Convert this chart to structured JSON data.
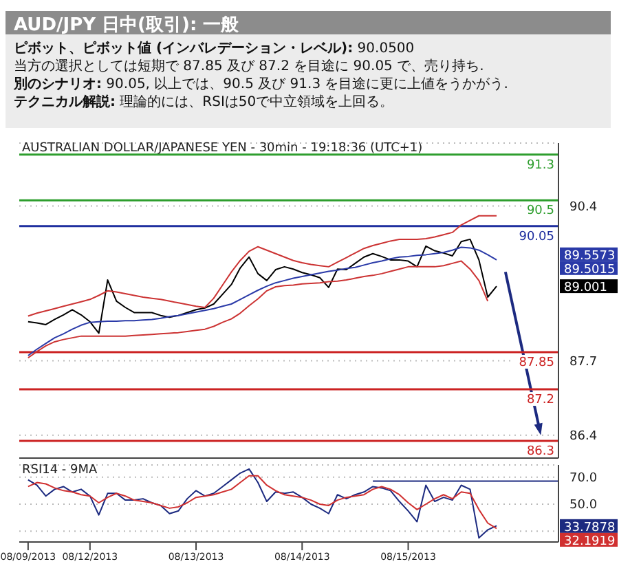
{
  "chart_data": [
    {
      "type": "other",
      "title": "AUD/JPY 日中(取引): 一般",
      "annotations": [
        "ピボット、ピボット値 (インバレデーション・レベル): 90.0500",
        "当方の選択としては短期で 87.85 及び 87.2 を目途に 90.05 で、売り持ち.",
        "別のシナリオ: 90.05, 以上では、90.5 及び 91.3 を目途に更に上値をうかがう.",
        "テクニカル解説: 理論的には、RSIは50で中立領域を上回る。"
      ]
    },
    {
      "type": "line",
      "title": "AUSTRALIAN DOLLAR/JAPANESE YEN - 30min - 19:18:36 (UTC+1)",
      "annotations": [
        "89.5573",
        "89.5015",
        "89.001"
      ],
      "categories": [
        null,
        null,
        null,
        null,
        null,
        null,
        null,
        null,
        null,
        null,
        null,
        null,
        null,
        null,
        null,
        null,
        null,
        null,
        null,
        null,
        null,
        null,
        null,
        null,
        null,
        null,
        null,
        null,
        null,
        null,
        null,
        null,
        null,
        null,
        null,
        null,
        null,
        null,
        null,
        null,
        null,
        null,
        null,
        null,
        null,
        null,
        null,
        null,
        null,
        null,
        null,
        null,
        null,
        null,
        null,
        null,
        null,
        null,
        null,
        null,
        null,
        null
      ],
      "series": [
        {
          "color": "#000000",
          "values": [
            null,
            88.38,
            88.36,
            88.33,
            88.42,
            88.5,
            88.59,
            88.5,
            88.38,
            88.18,
            89.11,
            88.74,
            88.63,
            88.54,
            88.54,
            88.54,
            88.49,
            88.46,
            88.49,
            88.54,
            88.59,
            88.62,
            88.69,
            88.86,
            89.03,
            89.32,
            89.51,
            89.22,
            89.1,
            89.29,
            89.34,
            89.3,
            89.24,
            89.2,
            89.15,
            88.98,
            89.3,
            89.29,
            89.4,
            89.51,
            89.57,
            89.52,
            89.46,
            89.46,
            89.44,
            89.34,
            89.7,
            89.62,
            89.58,
            89.53,
            89.78,
            89.82,
            89.46,
            88.81,
            89.0,
            null,
            null,
            null,
            null,
            null,
            null,
            null
          ]
        },
        {
          "color": "#cc3333",
          "values": [
            null,
            88.48,
            88.53,
            88.57,
            88.61,
            88.65,
            88.69,
            88.73,
            88.77,
            88.84,
            88.92,
            88.9,
            88.87,
            88.84,
            88.81,
            88.79,
            88.77,
            88.74,
            88.71,
            88.68,
            88.65,
            88.63,
            88.79,
            89.02,
            89.25,
            89.45,
            89.61,
            89.69,
            89.63,
            89.57,
            89.51,
            89.45,
            89.41,
            89.38,
            89.36,
            89.34,
            89.42,
            89.5,
            89.58,
            89.66,
            89.71,
            89.75,
            89.79,
            89.82,
            89.82,
            89.82,
            89.83,
            89.86,
            89.9,
            89.94,
            90.07,
            90.15,
            90.23,
            90.23,
            90.23,
            null,
            null,
            null,
            null,
            null,
            null,
            null
          ]
        },
        {
          "color": "#cc3333",
          "values": [
            null,
            87.75,
            87.86,
            87.96,
            88.03,
            88.07,
            88.1,
            88.13,
            88.13,
            88.13,
            88.13,
            88.13,
            88.13,
            88.14,
            88.15,
            88.16,
            88.17,
            88.18,
            88.19,
            88.21,
            88.23,
            88.25,
            88.3,
            88.37,
            88.43,
            88.53,
            88.66,
            88.78,
            88.92,
            88.99,
            89.01,
            89.02,
            89.04,
            89.05,
            89.06,
            89.08,
            89.09,
            89.11,
            89.14,
            89.17,
            89.19,
            89.22,
            89.26,
            89.3,
            89.34,
            89.34,
            89.34,
            89.34,
            89.36,
            89.4,
            89.44,
            89.3,
            89.1,
            88.74,
            null,
            null,
            null,
            null,
            null,
            null,
            null,
            null
          ]
        },
        {
          "color": "#2a3aa8",
          "values": [
            null,
            87.79,
            87.9,
            88.0,
            88.1,
            88.17,
            88.25,
            88.32,
            88.37,
            88.38,
            88.39,
            88.39,
            88.4,
            88.4,
            88.41,
            88.42,
            88.44,
            88.47,
            88.49,
            88.52,
            88.55,
            88.58,
            88.61,
            88.65,
            88.69,
            88.77,
            88.85,
            88.93,
            89.0,
            89.06,
            89.1,
            89.14,
            89.17,
            89.2,
            89.23,
            89.26,
            89.28,
            89.31,
            89.33,
            89.37,
            89.41,
            89.44,
            89.48,
            89.51,
            89.52,
            89.54,
            89.55,
            89.57,
            89.59,
            89.63,
            89.68,
            89.67,
            89.63,
            89.55,
            89.46,
            null,
            null,
            null,
            null,
            null,
            null,
            null
          ]
        }
      ],
      "ref_lines": [
        {
          "axis": "y",
          "value": 91.3,
          "label": "91.3",
          "color": "#2e9e2e"
        },
        {
          "axis": "y",
          "value": 90.5,
          "label": "90.5",
          "color": "#2e9e2e"
        },
        {
          "axis": "y",
          "value": 90.05,
          "label": "90.05",
          "color": "#1f2f9f"
        },
        {
          "axis": "y",
          "value": 87.85,
          "label": "87.85",
          "color": "#cc2222"
        },
        {
          "axis": "y",
          "value": 87.2,
          "label": "87.2",
          "color": "#cc2222"
        },
        {
          "axis": "y",
          "value": 86.3,
          "label": "86.3",
          "color": "#cc2222"
        }
      ],
      "ylim": [
        86.0,
        91.5
      ],
      "yticks": [
        86.4,
        87.7,
        90.4
      ],
      "grid": "y",
      "tick_labels": "y"
    },
    {
      "type": "line",
      "title": "RSI14 - 9MA",
      "annotations": [
        "33.7878",
        "32.1919"
      ],
      "categories": [
        null,
        "08/09/2013",
        null,
        null,
        null,
        null,
        null,
        null,
        "08/12/2013",
        null,
        null,
        null,
        null,
        null,
        null,
        null,
        null,
        null,
        null,
        null,
        "08/13/2013",
        null,
        null,
        null,
        null,
        null,
        null,
        null,
        null,
        null,
        null,
        null,
        "08/14/2013",
        null,
        null,
        null,
        null,
        null,
        null,
        null,
        null,
        null,
        null,
        null,
        "08/15/2013",
        null,
        null,
        null,
        null,
        null,
        null,
        null,
        null,
        null,
        null,
        null,
        null,
        null,
        null,
        null,
        null,
        null
      ],
      "series": [
        {
          "color": "#1c2a80",
          "values": [
            null,
            68,
            64,
            56,
            61,
            63,
            59,
            61,
            56,
            42,
            58,
            58,
            53,
            53,
            54,
            51,
            49,
            43,
            45,
            54,
            60,
            56,
            58,
            63,
            68,
            73,
            76,
            66,
            52,
            59,
            58,
            59,
            55,
            50,
            47,
            43,
            57,
            54,
            57,
            59,
            63,
            62,
            60,
            52,
            45,
            37,
            64,
            52,
            55,
            53,
            64,
            61,
            25,
            31,
            34,
            null,
            null,
            null,
            null,
            null,
            null,
            null
          ]
        },
        {
          "color": "#d03030",
          "values": [
            null,
            63,
            66,
            65,
            62,
            60,
            59,
            57,
            56,
            51,
            55,
            58,
            56,
            53,
            52,
            51,
            49,
            47,
            48,
            51,
            55,
            56,
            57,
            59,
            61,
            66,
            71,
            71,
            64,
            60,
            57,
            56,
            55,
            53,
            50,
            49,
            53,
            55,
            56,
            57,
            61,
            63,
            61,
            57,
            51,
            46,
            50,
            54,
            57,
            54,
            59,
            58,
            46,
            36,
            32,
            null,
            null,
            null,
            null,
            null,
            null,
            null
          ]
        },
        {
          "type": "line",
          "color": "#1c2a80",
          "values": [
            null,
            null,
            null,
            null,
            null,
            null,
            null,
            null,
            null,
            null,
            null,
            null,
            null,
            null,
            null,
            null,
            null,
            null,
            null,
            null,
            null,
            null,
            null,
            null,
            null,
            null,
            null,
            null,
            null,
            null,
            null,
            null,
            null,
            null,
            null,
            null,
            null,
            null,
            null,
            null,
            67,
            67,
            67,
            67,
            67,
            67,
            67,
            67,
            67,
            67,
            67,
            67,
            67,
            67,
            67,
            67,
            67,
            67,
            67,
            67,
            67,
            67
          ]
        }
      ],
      "ylim": [
        22,
        79
      ],
      "yticks": [
        {
          "value": 30,
          "label": null
        },
        {
          "value": 50,
          "label": "50.0"
        },
        {
          "value": 70,
          "label": "70.0"
        }
      ],
      "grid": "y"
    }
  ]
}
